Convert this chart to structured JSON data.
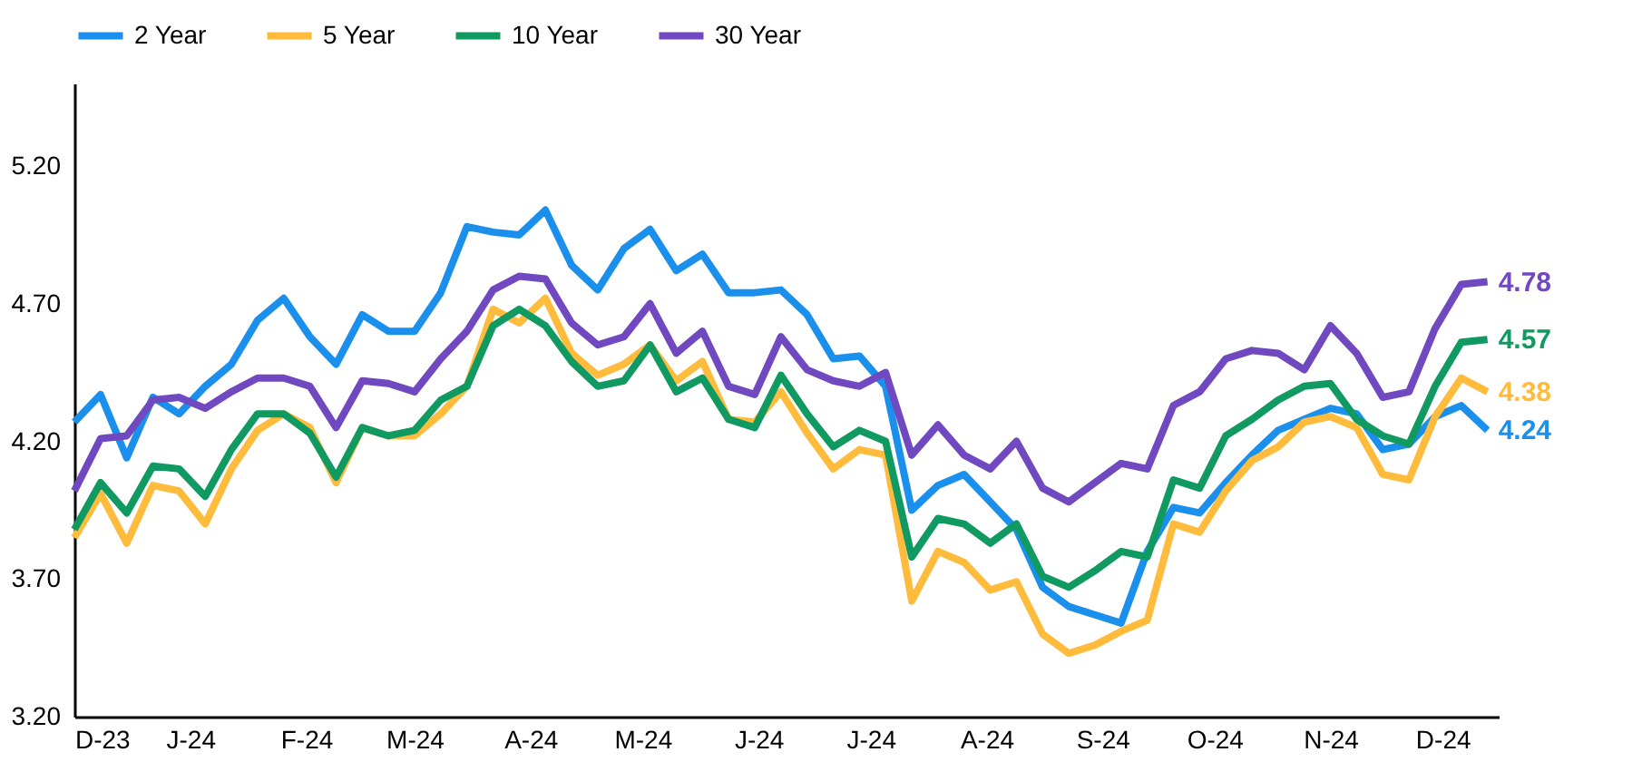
{
  "chart_data": {
    "type": "line",
    "x": [
      "2023-12-01",
      "2023-12-08",
      "2023-12-15",
      "2023-12-22",
      "2023-12-29",
      "2024-01-05",
      "2024-01-12",
      "2024-01-19",
      "2024-01-26",
      "2024-02-02",
      "2024-02-09",
      "2024-02-16",
      "2024-02-23",
      "2024-03-01",
      "2024-03-08",
      "2024-03-15",
      "2024-03-22",
      "2024-03-29",
      "2024-04-05",
      "2024-04-12",
      "2024-04-19",
      "2024-04-26",
      "2024-05-03",
      "2024-05-10",
      "2024-05-17",
      "2024-05-24",
      "2024-05-31",
      "2024-06-07",
      "2024-06-14",
      "2024-06-21",
      "2024-06-28",
      "2024-07-05",
      "2024-07-12",
      "2024-07-19",
      "2024-07-26",
      "2024-08-02",
      "2024-08-09",
      "2024-08-16",
      "2024-08-23",
      "2024-08-30",
      "2024-09-06",
      "2024-09-13",
      "2024-09-20",
      "2024-09-27",
      "2024-10-04",
      "2024-10-11",
      "2024-10-18",
      "2024-10-25",
      "2024-11-01",
      "2024-11-08",
      "2024-11-15",
      "2024-11-22",
      "2024-11-29",
      "2024-12-06",
      "2024-12-13"
    ],
    "series": [
      {
        "name": "2 Year",
        "color": "#1a8fec",
        "values": [
          4.27,
          4.37,
          4.14,
          4.36,
          4.3,
          4.4,
          4.48,
          4.64,
          4.72,
          4.58,
          4.48,
          4.66,
          4.6,
          4.6,
          4.74,
          4.98,
          4.96,
          4.95,
          5.04,
          4.84,
          4.75,
          4.9,
          4.97,
          4.82,
          4.88,
          4.74,
          4.74,
          4.75,
          4.66,
          4.5,
          4.51,
          4.4,
          3.95,
          4.04,
          4.08,
          3.98,
          3.88,
          3.67,
          3.6,
          3.57,
          3.54,
          3.8,
          3.96,
          3.94,
          4.05,
          4.15,
          4.24,
          4.28,
          4.32,
          4.3,
          4.17,
          4.19,
          4.29,
          4.33,
          4.24
        ],
        "value_labels": [
          null,
          null,
          null,
          null,
          null,
          null,
          null,
          null,
          null,
          null,
          null,
          null,
          null,
          null,
          null,
          null,
          null,
          null,
          null,
          null,
          null,
          null,
          null,
          null,
          null,
          null,
          null,
          null,
          null,
          null,
          null,
          null,
          null,
          null,
          null,
          null,
          null,
          null,
          null,
          null,
          null,
          null,
          null,
          null,
          null,
          null,
          null,
          null,
          null,
          null,
          null,
          null,
          null,
          null,
          "4.24"
        ]
      },
      {
        "name": "5 Year",
        "color": "#ffbb3b",
        "values": [
          3.85,
          4.01,
          3.83,
          4.04,
          4.02,
          3.9,
          4.1,
          4.24,
          4.3,
          4.25,
          4.05,
          4.25,
          4.22,
          4.22,
          4.3,
          4.4,
          4.68,
          4.63,
          4.72,
          4.52,
          4.44,
          4.48,
          4.55,
          4.42,
          4.49,
          4.28,
          4.27,
          4.38,
          4.23,
          4.1,
          4.17,
          4.15,
          3.62,
          3.8,
          3.76,
          3.66,
          3.69,
          3.5,
          3.43,
          3.46,
          3.51,
          3.55,
          3.9,
          3.87,
          4.02,
          4.13,
          4.18,
          4.27,
          4.29,
          4.25,
          4.08,
          4.06,
          4.29,
          4.43,
          4.38
        ],
        "value_labels": [
          null,
          null,
          null,
          null,
          null,
          null,
          null,
          null,
          null,
          null,
          null,
          null,
          null,
          null,
          null,
          null,
          null,
          null,
          null,
          null,
          null,
          null,
          null,
          null,
          null,
          null,
          null,
          null,
          null,
          null,
          null,
          null,
          null,
          null,
          null,
          null,
          null,
          null,
          null,
          null,
          null,
          null,
          null,
          null,
          null,
          null,
          null,
          null,
          null,
          null,
          null,
          null,
          null,
          null,
          "4.38"
        ]
      },
      {
        "name": "10 Year",
        "color": "#109a62",
        "values": [
          3.88,
          4.05,
          3.94,
          4.11,
          4.1,
          4.0,
          4.17,
          4.3,
          4.3,
          4.23,
          4.07,
          4.25,
          4.22,
          4.24,
          4.35,
          4.4,
          4.62,
          4.68,
          4.62,
          4.49,
          4.4,
          4.42,
          4.55,
          4.38,
          4.43,
          4.28,
          4.25,
          4.44,
          4.3,
          4.18,
          4.24,
          4.2,
          3.78,
          3.92,
          3.9,
          3.83,
          3.9,
          3.71,
          3.67,
          3.73,
          3.8,
          3.78,
          4.06,
          4.03,
          4.22,
          4.28,
          4.35,
          4.4,
          4.41,
          4.28,
          4.22,
          4.19,
          4.4,
          4.56,
          4.57
        ],
        "value_labels": [
          null,
          null,
          null,
          null,
          null,
          null,
          null,
          null,
          null,
          null,
          null,
          null,
          null,
          null,
          null,
          null,
          null,
          null,
          null,
          null,
          null,
          null,
          null,
          null,
          null,
          null,
          null,
          null,
          null,
          null,
          null,
          null,
          null,
          null,
          null,
          null,
          null,
          null,
          null,
          null,
          null,
          null,
          null,
          null,
          null,
          null,
          null,
          null,
          null,
          null,
          null,
          null,
          null,
          null,
          "4.57"
        ]
      },
      {
        "name": "30 Year",
        "color": "#7048c0",
        "values": [
          4.02,
          4.21,
          4.22,
          4.35,
          4.36,
          4.32,
          4.38,
          4.43,
          4.43,
          4.4,
          4.25,
          4.42,
          4.41,
          4.38,
          4.5,
          4.6,
          4.75,
          4.8,
          4.79,
          4.63,
          4.55,
          4.58,
          4.7,
          4.52,
          4.6,
          4.4,
          4.37,
          4.58,
          4.46,
          4.42,
          4.4,
          4.45,
          4.15,
          4.26,
          4.15,
          4.1,
          4.2,
          4.03,
          3.98,
          4.05,
          4.12,
          4.1,
          4.33,
          4.38,
          4.5,
          4.53,
          4.52,
          4.46,
          4.62,
          4.52,
          4.36,
          4.38,
          4.61,
          4.77,
          4.78
        ],
        "value_labels": [
          null,
          null,
          null,
          null,
          null,
          null,
          null,
          null,
          null,
          null,
          null,
          null,
          null,
          null,
          null,
          null,
          null,
          null,
          null,
          null,
          null,
          null,
          null,
          null,
          null,
          null,
          null,
          null,
          null,
          null,
          null,
          null,
          null,
          null,
          null,
          null,
          null,
          null,
          null,
          null,
          null,
          null,
          null,
          null,
          null,
          null,
          null,
          null,
          null,
          null,
          null,
          null,
          null,
          null,
          "4.78"
        ]
      }
    ],
    "xlim": [
      "2023-12-01",
      "2024-12-16"
    ],
    "xticks": [
      {
        "value": "2023-12-01",
        "label": "D-23"
      },
      {
        "value": "2024-01-01",
        "label": "J-24"
      },
      {
        "value": "2024-02-01",
        "label": "F-24"
      },
      {
        "value": "2024-03-01",
        "label": "M-24"
      },
      {
        "value": "2024-04-01",
        "label": "A-24"
      },
      {
        "value": "2024-05-01",
        "label": "M-24"
      },
      {
        "value": "2024-06-01",
        "label": "J-24"
      },
      {
        "value": "2024-07-01",
        "label": "J-24"
      },
      {
        "value": "2024-08-01",
        "label": "A-24"
      },
      {
        "value": "2024-09-01",
        "label": "S-24"
      },
      {
        "value": "2024-10-01",
        "label": "O-24"
      },
      {
        "value": "2024-11-01",
        "label": "N-24"
      },
      {
        "value": "2024-12-01",
        "label": "D-24"
      }
    ],
    "ylim": [
      3.2,
      5.5
    ],
    "yticks": [
      {
        "value": 3.2,
        "label": "3.20"
      },
      {
        "value": 3.7,
        "label": "3.70"
      },
      {
        "value": 4.2,
        "label": "4.20"
      },
      {
        "value": 4.7,
        "label": "4.70"
      },
      {
        "value": 5.2,
        "label": "5.20"
      }
    ],
    "grid": false,
    "legend": "top",
    "line_style": "solid",
    "marker": "none"
  }
}
